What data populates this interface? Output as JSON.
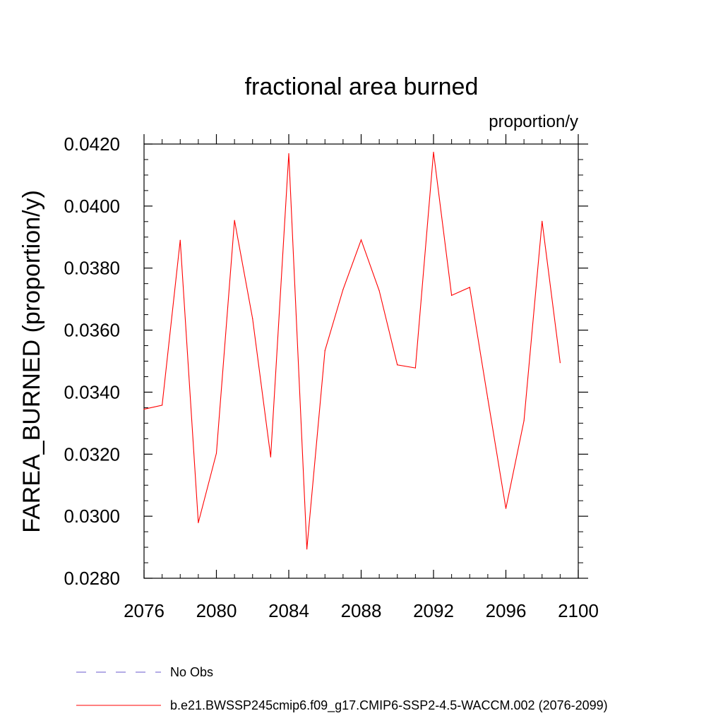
{
  "chart_data": {
    "type": "line",
    "title": "fractional area burned",
    "units_label": "proportion/y",
    "xlabel": "",
    "ylabel": "FAREA_BURNED  (proportion/y)",
    "xlim": [
      2076,
      2100
    ],
    "ylim": [
      0.028,
      0.042
    ],
    "x_ticks": [
      "2076",
      "2080",
      "2084",
      "2088",
      "2092",
      "2096",
      "2100"
    ],
    "y_ticks": [
      "0.0280",
      "0.0300",
      "0.0320",
      "0.0340",
      "0.0360",
      "0.0380",
      "0.0400",
      "0.0420"
    ],
    "grid": false,
    "legend_position": "bottom",
    "series": [
      {
        "name": "b.e21.BWSSP245cmip6.f09_g17.CMIP6-SSP2-4.5-WACCM.002 (2076-2099)",
        "color": "#ff0000",
        "style": "solid",
        "x": [
          2076,
          2077,
          2078,
          2079,
          2080,
          2081,
          2082,
          2083,
          2084,
          2085,
          2086,
          2087,
          2088,
          2089,
          2090,
          2091,
          2092,
          2093,
          2094,
          2095,
          2096,
          2097,
          2098,
          2099
        ],
        "values": [
          0.03345,
          0.03358,
          0.0389,
          0.02979,
          0.03203,
          0.03954,
          0.03637,
          0.03191,
          0.04169,
          0.02894,
          0.03534,
          0.03731,
          0.03891,
          0.03727,
          0.03488,
          0.03478,
          0.04174,
          0.03712,
          0.03738,
          0.03379,
          0.03025,
          0.03308,
          0.03951,
          0.03495
        ]
      }
    ],
    "legend": [
      {
        "label": "No Obs",
        "color": "#6a5acd",
        "style": "dashed"
      },
      {
        "label": "b.e21.BWSSP245cmip6.f09_g17.CMIP6-SSP2-4.5-WACCM.002 (2076-2099)",
        "color": "#ff0000",
        "style": "solid"
      }
    ]
  }
}
